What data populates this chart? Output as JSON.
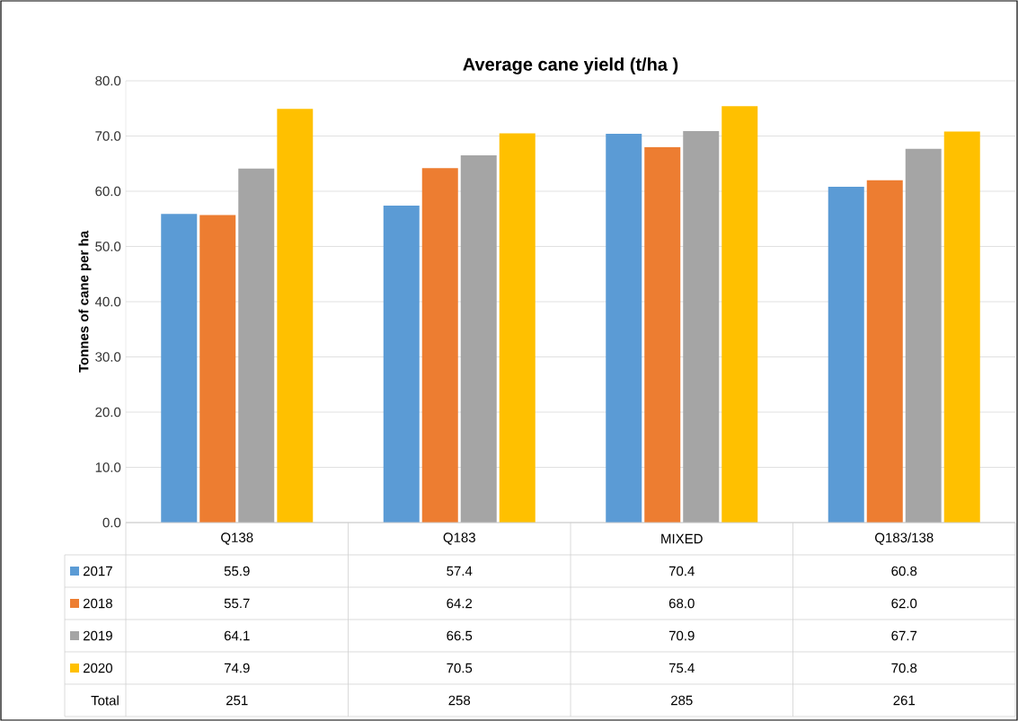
{
  "chart_data": {
    "type": "bar",
    "title": "Average cane yield (t/ha )",
    "ylabel": "Tonnes of cane per ha",
    "categories": [
      "Q138",
      "Q183",
      "MIXED",
      "Q183/138"
    ],
    "series": [
      {
        "name": "2017",
        "color": "#5b9bd5",
        "values": [
          55.9,
          57.4,
          70.4,
          60.8
        ],
        "value_labels": [
          "55.9",
          "57.4",
          "70.4",
          "60.8"
        ]
      },
      {
        "name": "2018",
        "color": "#ed7d31",
        "values": [
          55.7,
          64.2,
          68.0,
          62.0
        ],
        "value_labels": [
          "55.7",
          "64.2",
          "68.0",
          "62.0"
        ]
      },
      {
        "name": "2019",
        "color": "#a5a5a5",
        "values": [
          64.1,
          66.5,
          70.9,
          67.7
        ],
        "value_labels": [
          "64.1",
          "66.5",
          "70.9",
          "67.7"
        ]
      },
      {
        "name": "2020",
        "color": "#ffc000",
        "values": [
          74.9,
          70.5,
          75.4,
          70.8
        ],
        "value_labels": [
          "74.9",
          "70.5",
          "75.4",
          "70.8"
        ]
      }
    ],
    "annotations": [
      "Total",
      "251",
      "258",
      "285",
      "261"
    ],
    "ylim": [
      0,
      80
    ],
    "yticks": [
      {
        "value": 0,
        "label": "0.0"
      },
      {
        "value": 10,
        "label": "10.0"
      },
      {
        "value": 20,
        "label": "20.0"
      },
      {
        "value": 30,
        "label": "30.0"
      },
      {
        "value": 40,
        "label": "40.0"
      },
      {
        "value": 50,
        "label": "50.0"
      },
      {
        "value": 60,
        "label": "60.0"
      },
      {
        "value": 70,
        "label": "70.0"
      },
      {
        "value": 80,
        "label": "80.0"
      }
    ],
    "grid": "y",
    "legend": "bottom"
  }
}
